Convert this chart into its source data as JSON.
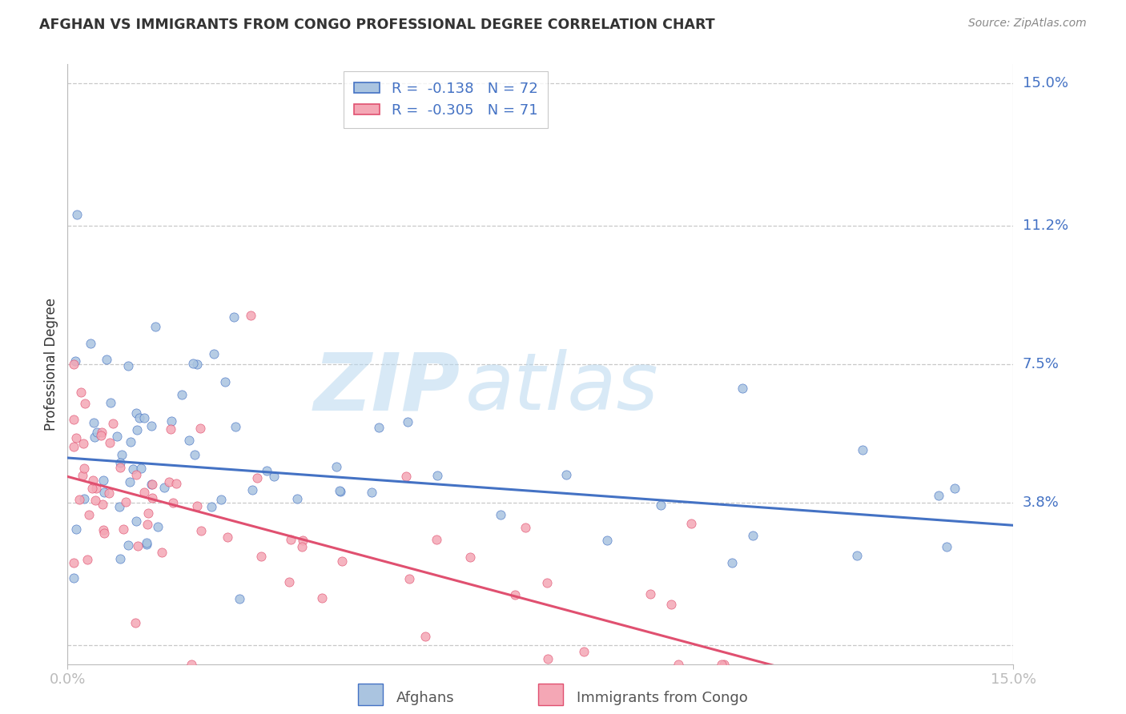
{
  "title": "AFGHAN VS IMMIGRANTS FROM CONGO PROFESSIONAL DEGREE CORRELATION CHART",
  "source": "Source: ZipAtlas.com",
  "ylabel": "Professional Degree",
  "xlim": [
    0,
    0.15
  ],
  "ylim": [
    -0.005,
    0.155
  ],
  "ytick_vals": [
    0.0,
    0.038,
    0.075,
    0.112,
    0.15
  ],
  "ytick_labels": [
    "",
    "3.8%",
    "7.5%",
    "11.2%",
    "15.0%"
  ],
  "xtick_vals": [
    0.0,
    0.15
  ],
  "xtick_labels": [
    "0.0%",
    "15.0%"
  ],
  "r_afghan": -0.138,
  "n_afghan": 72,
  "r_congo": -0.305,
  "n_congo": 71,
  "afghan_color": "#aac4e0",
  "congo_color": "#f4a7b5",
  "afghan_line_color": "#4472c4",
  "congo_line_color": "#e05070",
  "watermark_zip": "ZIP",
  "watermark_atlas": "atlas",
  "background_color": "#ffffff",
  "grid_color": "#c8c8c8",
  "title_color": "#333333",
  "source_color": "#888888",
  "axis_label_color": "#333333",
  "tick_label_color": "#4472c4",
  "legend_text_color": "#4472c4",
  "legend_r_color": "#e05070",
  "bottom_legend_color": "#555555"
}
